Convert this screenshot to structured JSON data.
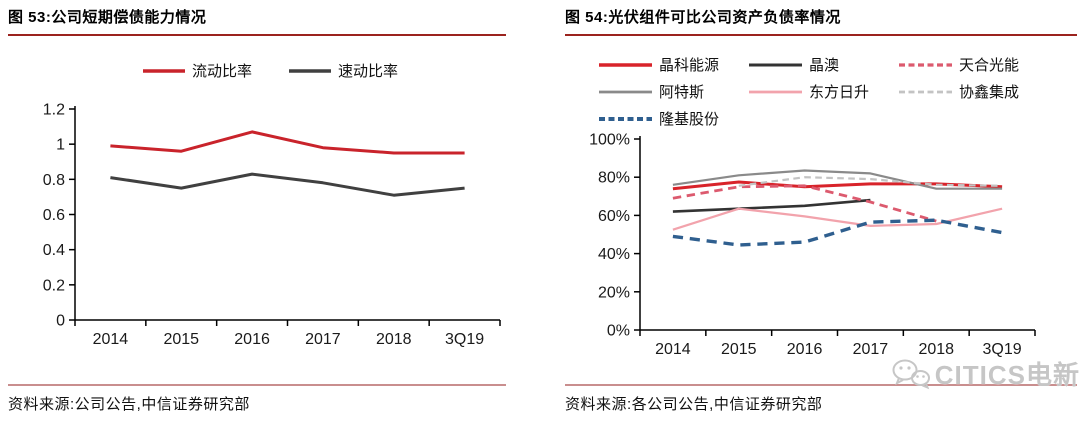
{
  "page": {
    "background": "#ffffff",
    "title_rule_color": "#9B231E",
    "source_rule_color": "#C98E8E"
  },
  "panels": [
    {
      "title": "图 53:公司短期偿债能力情况",
      "source": "资料来源:公司公告,中信证券研究部"
    },
    {
      "title": "图 54:光伏组件可比公司资产负债率情况",
      "source": "资料来源:各公司公告,中信证券研究部"
    }
  ],
  "chart_data": [
    {
      "type": "line",
      "title": "公司短期偿债能力情况",
      "xlabel": "",
      "ylabel": "",
      "categories": [
        "2014",
        "2015",
        "2016",
        "2017",
        "2018",
        "3Q19"
      ],
      "ylim": [
        0,
        1.2
      ],
      "yticks": [
        0,
        0.2,
        0.4,
        0.6,
        0.8,
        1,
        1.2
      ],
      "ytick_labels": [
        "0",
        "0.2",
        "0.4",
        "0.6",
        "0.8",
        "1",
        "1.2"
      ],
      "grid": false,
      "legend_position": "top-center",
      "series": [
        {
          "name": "流动比率",
          "color": "#C9232B",
          "style": "solid",
          "width": 3,
          "values": [
            0.99,
            0.96,
            1.07,
            0.98,
            0.95,
            0.95
          ]
        },
        {
          "name": "速动比率",
          "color": "#404040",
          "style": "solid",
          "width": 3,
          "values": [
            0.81,
            0.75,
            0.83,
            0.78,
            0.71,
            0.75
          ]
        }
      ]
    },
    {
      "type": "line",
      "title": "光伏组件可比公司资产负债率情况",
      "xlabel": "",
      "ylabel": "",
      "categories": [
        "2014",
        "2015",
        "2016",
        "2017",
        "2018",
        "3Q19"
      ],
      "ylim": [
        0,
        100
      ],
      "yticks": [
        0,
        20,
        40,
        60,
        80,
        100
      ],
      "ytick_labels": [
        "0%",
        "20%",
        "40%",
        "60%",
        "80%",
        "100%"
      ],
      "grid": false,
      "legend_position": "top-grid",
      "series": [
        {
          "name": "晶科能源",
          "color": "#D8232A",
          "style": "solid",
          "width": 3,
          "values": [
            74,
            77.5,
            75,
            76.5,
            76.5,
            75
          ]
        },
        {
          "name": "晶澳",
          "color": "#333333",
          "style": "solid",
          "width": 2.6,
          "values": [
            62,
            63.5,
            65,
            68,
            null,
            null
          ]
        },
        {
          "name": "天合光能",
          "color": "#DC5A6E",
          "style": "dashed",
          "width": 2.8,
          "values": [
            69,
            75,
            75.5,
            67,
            57,
            null
          ]
        },
        {
          "name": "阿特斯",
          "color": "#8A8A8A",
          "style": "solid",
          "width": 2.2,
          "values": [
            76,
            81,
            83.5,
            82,
            74,
            74
          ]
        },
        {
          "name": "东方日升",
          "color": "#F2A3AC",
          "style": "solid",
          "width": 2.2,
          "values": [
            52.5,
            63.5,
            59.5,
            54.5,
            55.5,
            63.5
          ]
        },
        {
          "name": "协鑫集成",
          "color": "#C3C3C3",
          "style": "dashed",
          "width": 2.2,
          "values": [
            null,
            75.5,
            80,
            79,
            76,
            75.5
          ]
        },
        {
          "name": "隆基股份",
          "color": "#2F5F8F",
          "style": "dashed",
          "width": 3.4,
          "values": [
            49,
            44.5,
            46,
            56.5,
            57.5,
            51
          ]
        }
      ]
    }
  ],
  "watermark": {
    "text": "CITICS电新",
    "icon": "wechat-logo-icon"
  }
}
